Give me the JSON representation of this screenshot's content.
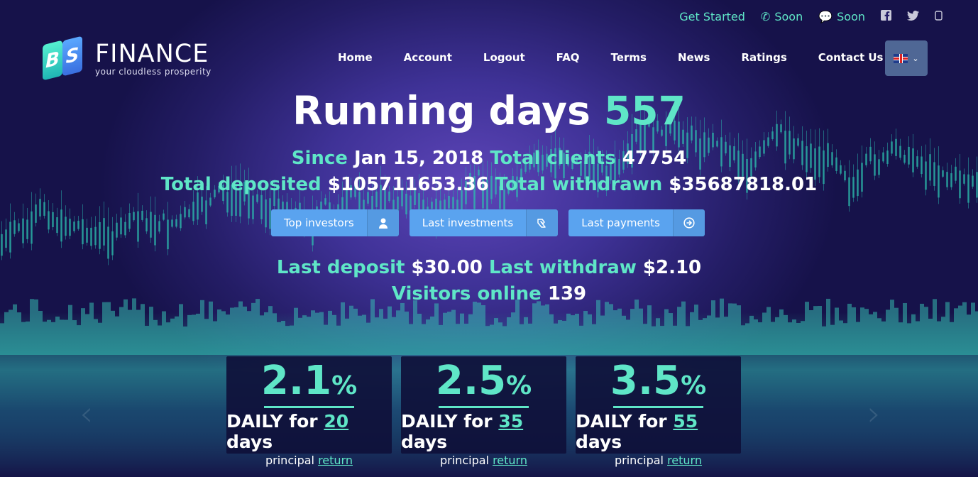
{
  "topbar": {
    "get_started": "Get Started",
    "phone_label": "Soon",
    "chat_label": "Soon",
    "icons": [
      "phone-icon",
      "chat-icon",
      "facebook-icon",
      "twitter-icon",
      "instagram-icon"
    ]
  },
  "logo": {
    "letters": [
      "B",
      "S"
    ],
    "name": "FINANCE",
    "tagline": "your cloudless prosperity"
  },
  "nav": {
    "items": [
      "Home",
      "Account",
      "Logout",
      "FAQ",
      "Terms",
      "News",
      "Ratings",
      "Contact Us"
    ]
  },
  "language": {
    "selected": "English (UK flag)"
  },
  "hero": {
    "running_label": "Running days",
    "running_value": "557",
    "since_label": "Since",
    "since_value": "Jan 15, 2018",
    "clients_label": "Total clients",
    "clients_value": "47754",
    "deposited_label": "Total deposited",
    "deposited_value": "$105711653.36",
    "withdrawn_label": "Total withdrawn",
    "withdrawn_value": "$35687818.01",
    "last_deposit_label": "Last deposit",
    "last_deposit_value": "$30.00",
    "last_withdraw_label": "Last withdraw",
    "last_withdraw_value": "$2.10",
    "visitors_label": "Visitors online",
    "visitors_value": "139"
  },
  "buttons": {
    "top_investors": "Top investors",
    "last_investments": "Last investments",
    "last_payments": "Last payments"
  },
  "plans": [
    {
      "rate": "2.1",
      "pct": "%",
      "daily": "DAILY for",
      "days": "20",
      "days_word": "days",
      "principal": "principal",
      "return": "return"
    },
    {
      "rate": "2.5",
      "pct": "%",
      "daily": "DAILY for",
      "days": "35",
      "days_word": "days",
      "principal": "principal",
      "return": "return"
    },
    {
      "rate": "3.5",
      "pct": "%",
      "daily": "DAILY for",
      "days": "55",
      "days_word": "days",
      "principal": "principal",
      "return": "return"
    }
  ],
  "colors": {
    "accent": "#5fe6c7",
    "button": "#5aa3ef",
    "background": "#241d66"
  }
}
